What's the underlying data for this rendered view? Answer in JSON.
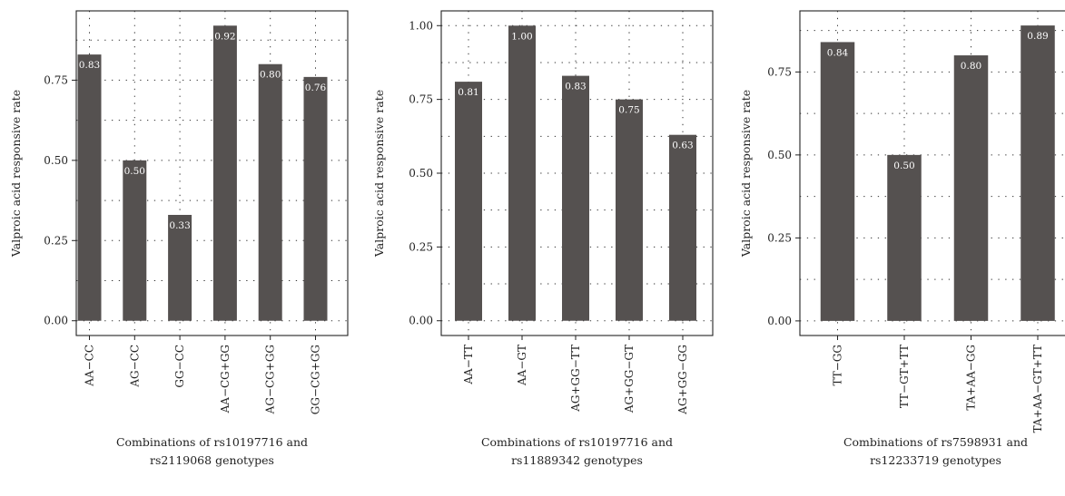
{
  "chart_data": [
    {
      "type": "bar",
      "title": "",
      "ylabel": "Valproic acid responsive rate",
      "xlabel": [
        "Combinations of rs10197716 and",
        "rs2119068 genotypes"
      ],
      "categories": [
        "AA−CC",
        "AG−CC",
        "GG−CC",
        "AA−CG+GG",
        "AG−CG+GG",
        "GG−CG+GG"
      ],
      "values": [
        0.83,
        0.5,
        0.33,
        0.92,
        0.8,
        0.76
      ],
      "data_labels": [
        "0.83",
        "0.50",
        "0.33",
        "0.92",
        "0.80",
        "0.76"
      ],
      "yticks": [
        "0.00",
        "0.25",
        "0.50",
        "0.75"
      ],
      "ytick_values": [
        0,
        0.25,
        0.5,
        0.75
      ],
      "ylim": [
        -0.046,
        0.966
      ],
      "grid": true,
      "bar_color": "#555150"
    },
    {
      "type": "bar",
      "title": "",
      "ylabel": "Valproic acid responsive rate",
      "xlabel": [
        "Combinations of rs10197716 and",
        "rs11889342 genotypes"
      ],
      "categories": [
        "AA−TT",
        "AA−GT",
        "AG+GG−TT",
        "AG+GG−GT",
        "AG+GG−GG"
      ],
      "values": [
        0.81,
        1.0,
        0.83,
        0.75,
        0.63
      ],
      "data_labels": [
        "0.81",
        "1.00",
        "0.83",
        "0.75",
        "0.63"
      ],
      "yticks": [
        "0.00",
        "0.25",
        "0.50",
        "0.75",
        "1.00"
      ],
      "ytick_values": [
        0,
        0.25,
        0.5,
        0.75,
        1.0
      ],
      "ylim": [
        -0.05,
        1.05
      ],
      "grid": true,
      "bar_color": "#555150"
    },
    {
      "type": "bar",
      "title": "",
      "ylabel": "Valproic acid responsive rate",
      "xlabel": [
        "Combinations of rs7598931 and",
        "rs12233719 genotypes"
      ],
      "categories": [
        "TT−GG",
        "TT−GT+TT",
        "TA+AA−GG",
        "TA+AA−GT+TT"
      ],
      "values": [
        0.84,
        0.5,
        0.8,
        0.89
      ],
      "data_labels": [
        "0.84",
        "0.50",
        "0.80",
        "0.89"
      ],
      "yticks": [
        "0.00",
        "0.25",
        "0.50",
        "0.75"
      ],
      "ytick_values": [
        0,
        0.25,
        0.5,
        0.75
      ],
      "ylim": [
        -0.044,
        0.934
      ],
      "grid": true,
      "bar_color": "#555150"
    }
  ]
}
